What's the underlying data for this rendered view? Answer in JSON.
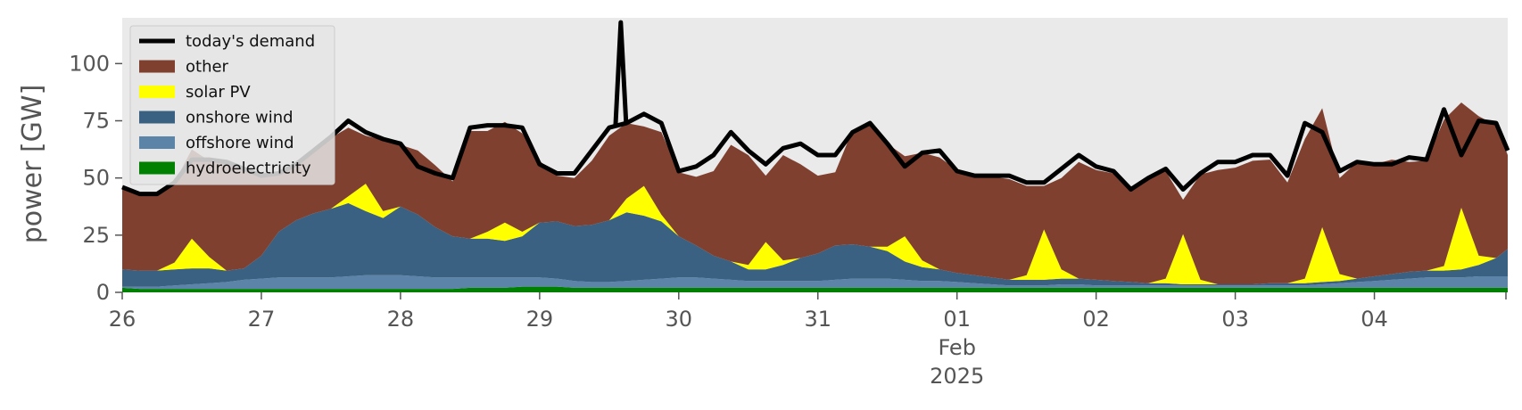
{
  "chart_data": {
    "type": "area",
    "ylabel": "power [GW]",
    "xlabel": "",
    "ylim": [
      0,
      120
    ],
    "xlim": [
      "2025-01-26T00:00",
      "2025-02-04T23:00"
    ],
    "y_ticks": [
      0,
      25,
      50,
      75,
      100
    ],
    "x_ticks": [
      {
        "x": "2025-01-26",
        "label": "26"
      },
      {
        "x": "2025-01-27",
        "label": "27"
      },
      {
        "x": "2025-01-28",
        "label": "28"
      },
      {
        "x": "2025-01-29",
        "label": "29"
      },
      {
        "x": "2025-01-30",
        "label": "30"
      },
      {
        "x": "2025-01-31",
        "label": "31"
      },
      {
        "x": "2025-02-01",
        "label": "01"
      },
      {
        "x": "2025-02-02",
        "label": "02"
      },
      {
        "x": "2025-02-03",
        "label": "03"
      },
      {
        "x": "2025-02-04",
        "label": "04"
      }
    ],
    "x_sublabels": [
      "Feb",
      "2025"
    ],
    "grid": false,
    "background": "#eaeaea",
    "legend_position": "top-left",
    "x": [
      "2025-01-26T00:00",
      "2025-01-26T03:00",
      "2025-01-26T06:00",
      "2025-01-26T09:00",
      "2025-01-26T12:00",
      "2025-01-26T15:00",
      "2025-01-26T18:00",
      "2025-01-26T21:00",
      "2025-01-27T00:00",
      "2025-01-27T03:00",
      "2025-01-27T06:00",
      "2025-01-27T09:00",
      "2025-01-27T12:00",
      "2025-01-27T15:00",
      "2025-01-27T18:00",
      "2025-01-27T21:00",
      "2025-01-28T00:00",
      "2025-01-28T03:00",
      "2025-01-28T06:00",
      "2025-01-28T09:00",
      "2025-01-28T12:00",
      "2025-01-28T15:00",
      "2025-01-28T18:00",
      "2025-01-28T21:00",
      "2025-01-29T00:00",
      "2025-01-29T03:00",
      "2025-01-29T06:00",
      "2025-01-29T09:00",
      "2025-01-29T12:00",
      "2025-01-29T15:00",
      "2025-01-29T18:00",
      "2025-01-29T21:00",
      "2025-01-30T00:00",
      "2025-01-30T03:00",
      "2025-01-30T06:00",
      "2025-01-30T09:00",
      "2025-01-30T12:00",
      "2025-01-30T15:00",
      "2025-01-30T18:00",
      "2025-01-30T21:00",
      "2025-01-31T00:00",
      "2025-01-31T03:00",
      "2025-01-31T06:00",
      "2025-01-31T09:00",
      "2025-01-31T12:00",
      "2025-01-31T15:00",
      "2025-01-31T18:00",
      "2025-01-31T21:00",
      "2025-02-01T00:00",
      "2025-02-01T03:00",
      "2025-02-01T06:00",
      "2025-02-01T09:00",
      "2025-02-01T12:00",
      "2025-02-01T15:00",
      "2025-02-01T18:00",
      "2025-02-01T21:00",
      "2025-02-02T00:00",
      "2025-02-02T03:00",
      "2025-02-02T06:00",
      "2025-02-02T09:00",
      "2025-02-02T12:00",
      "2025-02-02T15:00",
      "2025-02-02T18:00",
      "2025-02-02T21:00",
      "2025-02-03T00:00",
      "2025-02-03T03:00",
      "2025-02-03T06:00",
      "2025-02-03T09:00",
      "2025-02-03T12:00",
      "2025-02-03T15:00",
      "2025-02-03T18:00",
      "2025-02-03T21:00",
      "2025-02-04T00:00",
      "2025-02-04T03:00",
      "2025-02-04T06:00",
      "2025-02-04T09:00",
      "2025-02-04T12:00",
      "2025-02-04T15:00",
      "2025-02-04T18:00",
      "2025-02-04T21:00",
      "2025-02-04T23:00"
    ],
    "series": [
      {
        "name": "hydroelectricity",
        "color": "#008000",
        "values": [
          2,
          1.5,
          1.5,
          1.5,
          1.5,
          1.5,
          1.5,
          1.5,
          1.5,
          1.5,
          1.5,
          1.5,
          1.5,
          1.5,
          1.5,
          1.5,
          1.5,
          1.5,
          1.5,
          1.5,
          2,
          2,
          2,
          2.5,
          2.5,
          2.5,
          2,
          2,
          2,
          2,
          2,
          2,
          2,
          2,
          2,
          2,
          2,
          2,
          2,
          2,
          2,
          2,
          2,
          2,
          2,
          2,
          2,
          2,
          2,
          2,
          2,
          2,
          2,
          2,
          2,
          2,
          2,
          2,
          2,
          2,
          2,
          2,
          2,
          2,
          2,
          2,
          2,
          2,
          2,
          2,
          2,
          2,
          2,
          2,
          2,
          2,
          2,
          2,
          2,
          2,
          2
        ]
      },
      {
        "name": "offshore wind",
        "color": "#5b84a8",
        "values": [
          0.5,
          1,
          1,
          1.5,
          2,
          2.5,
          3,
          4,
          4.5,
          5,
          5,
          5,
          5,
          5.5,
          6,
          6,
          6,
          5.5,
          5,
          5,
          4.5,
          4.5,
          4.5,
          4,
          4,
          3.5,
          3,
          2.5,
          2.5,
          3,
          3.5,
          4,
          4.5,
          4.5,
          4,
          3.5,
          3,
          3,
          3,
          3,
          3,
          3.5,
          4,
          4,
          4,
          3.5,
          3,
          3,
          2.5,
          2,
          1.5,
          1,
          1,
          1,
          1.5,
          1.5,
          1,
          1,
          1,
          1,
          1,
          1,
          1,
          1,
          1,
          1,
          1,
          1,
          1,
          1.5,
          2,
          2.5,
          3,
          3.5,
          4,
          4.5,
          4.5,
          4.5,
          5,
          5,
          5
        ]
      },
      {
        "name": "onshore wind",
        "color": "#3b6182",
        "values": [
          7.5,
          7,
          7,
          7,
          7,
          6.5,
          5,
          5,
          10,
          20,
          25,
          28,
          30,
          32,
          28,
          25,
          30,
          27,
          22,
          18,
          17,
          17,
          16,
          18,
          24,
          25,
          24,
          25,
          27,
          30,
          28,
          25,
          18,
          14,
          10,
          8,
          5,
          5,
          7,
          10,
          12,
          15,
          15,
          14,
          12,
          8,
          6,
          5,
          4,
          3.5,
          3,
          2.5,
          2.5,
          2.5,
          2.5,
          2.5,
          2.5,
          2,
          1.5,
          1,
          1,
          0.5,
          0.5,
          0.5,
          0.5,
          0.5,
          1,
          1,
          1,
          1,
          1,
          1.5,
          2,
          2.5,
          3,
          3,
          3,
          3.5,
          5,
          8,
          12
        ]
      },
      {
        "name": "solar PV",
        "color": "#ffff00",
        "values": [
          0,
          0,
          0,
          3,
          13,
          5,
          0,
          0,
          0,
          0,
          0,
          0,
          0,
          3,
          12,
          3,
          0,
          0,
          0,
          0,
          0,
          3,
          8,
          2,
          0,
          0,
          0,
          0,
          0,
          6,
          13,
          3,
          0,
          0,
          0,
          0,
          2,
          12,
          2,
          0,
          0,
          0,
          0,
          0,
          2,
          11,
          3,
          0,
          0,
          0,
          0,
          0,
          2,
          22,
          4,
          0,
          0,
          0,
          0,
          0,
          2,
          22,
          2,
          0,
          0,
          0,
          0,
          0,
          2,
          24,
          3,
          0,
          0,
          0,
          0,
          0,
          2,
          27,
          4,
          0,
          0
        ]
      },
      {
        "name": "other",
        "color": "#7f4030",
        "values": [
          36,
          33,
          33,
          35,
          39,
          42,
          47,
          43,
          35,
          25,
          24,
          27,
          31,
          30,
          21,
          31,
          27,
          28,
          27,
          24,
          47,
          44,
          44,
          43,
          27,
          20,
          21,
          28,
          37,
          33,
          26,
          36,
          28,
          30,
          37,
          51,
          48,
          29,
          46,
          41,
          34,
          32,
          50,
          54,
          45,
          35,
          47,
          49,
          45,
          43,
          44,
          44,
          39,
          19,
          40,
          51,
          48,
          47,
          40,
          45,
          47,
          15,
          46,
          50,
          51,
          54,
          54,
          44,
          61,
          52,
          42,
          51,
          49,
          50,
          48,
          48,
          64,
          46,
          61,
          58,
          41
        ]
      },
      {
        "name": "today's demand",
        "type": "line",
        "color": "#000000",
        "values": [
          46,
          43,
          43,
          48,
          58,
          58,
          57,
          54,
          51,
          52,
          56,
          62,
          68,
          75,
          70,
          67,
          65,
          55,
          52,
          50,
          72,
          73,
          73,
          72,
          56,
          52,
          52,
          62,
          72,
          74,
          78,
          74,
          53,
          55,
          60,
          70,
          62,
          56,
          63,
          65,
          60,
          60,
          70,
          74,
          65,
          55,
          61,
          62,
          53,
          51,
          51,
          51,
          48,
          48,
          54,
          60,
          55,
          53,
          45,
          50,
          54,
          45,
          52,
          57,
          57,
          60,
          60,
          51,
          74,
          70,
          53,
          57,
          56,
          56,
          59,
          58,
          80,
          60,
          75,
          74,
          62
        ]
      }
    ],
    "annotations": [
      {
        "x": "2025-01-29T14:00",
        "y": 118,
        "label": ""
      }
    ]
  },
  "legend": {
    "items": [
      {
        "label": "today's demand",
        "kind": "line",
        "color": "#000000"
      },
      {
        "label": "other",
        "kind": "patch",
        "color": "#7f4030"
      },
      {
        "label": "solar PV",
        "kind": "patch",
        "color": "#ffff00"
      },
      {
        "label": "onshore wind",
        "kind": "patch",
        "color": "#3b6182"
      },
      {
        "label": "offshore wind",
        "kind": "patch",
        "color": "#5b84a8"
      },
      {
        "label": "hydroelectricity",
        "kind": "patch",
        "color": "#008000"
      }
    ]
  }
}
